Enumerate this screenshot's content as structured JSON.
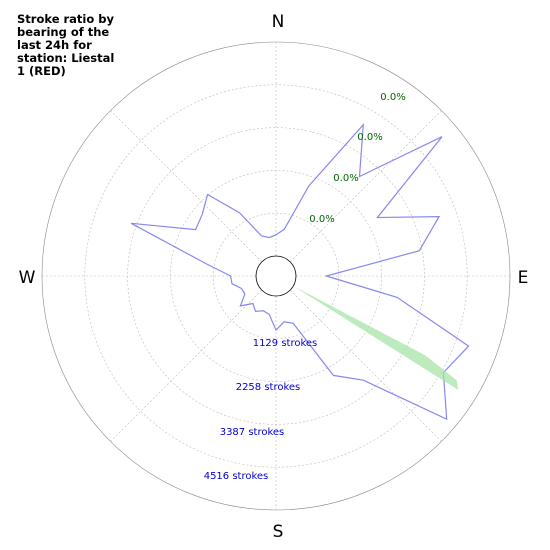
{
  "chart_data": {
    "type": "polar",
    "title": "Stroke ratio by\nbearing of the\nlast 24h for\nstation: Liestal\n1 (RED)",
    "direction_labels": [
      "N",
      "E",
      "S",
      "W"
    ],
    "stroke_ring_labels": [
      "1129 strokes",
      "2258 strokes",
      "3387 strokes",
      "4516 strokes"
    ],
    "ratio_ring_labels": [
      "0.0%",
      "0.0%",
      "0.0%",
      "0.0%"
    ],
    "ring_values": [
      1129,
      2258,
      3387,
      4516
    ],
    "r_max": 5645,
    "series": [
      {
        "name": "",
        "color": "#8888ee",
        "bearings": [
          0,
          10,
          20,
          30,
          40,
          50,
          60,
          70,
          80,
          90,
          100,
          110,
          120,
          130,
          140,
          150,
          160,
          170,
          180,
          190,
          200,
          210,
          220,
          230,
          240,
          250,
          260,
          270,
          280,
          290,
          300,
          310,
          320,
          330,
          340,
          350
        ],
        "values": [
          560,
          720,
          2000,
          4080,
          2900,
          5190,
          2560,
          4050,
          3310,
          800,
          2720,
          4880,
          4570,
          5350,
          3060,
          2500,
          800,
          700,
          900,
          500,
          450,
          550,
          420,
          700,
          420,
          440,
          650,
          670,
          1350,
          3540,
          1920,
          2010,
          2280,
          1400,
          600,
          500
        ]
      },
      {
        "name": "",
        "color": "#a8e4a8",
        "bearings": [
          118,
          120,
          122
        ],
        "values": [
          3930,
          4980,
          5140
        ]
      }
    ]
  }
}
